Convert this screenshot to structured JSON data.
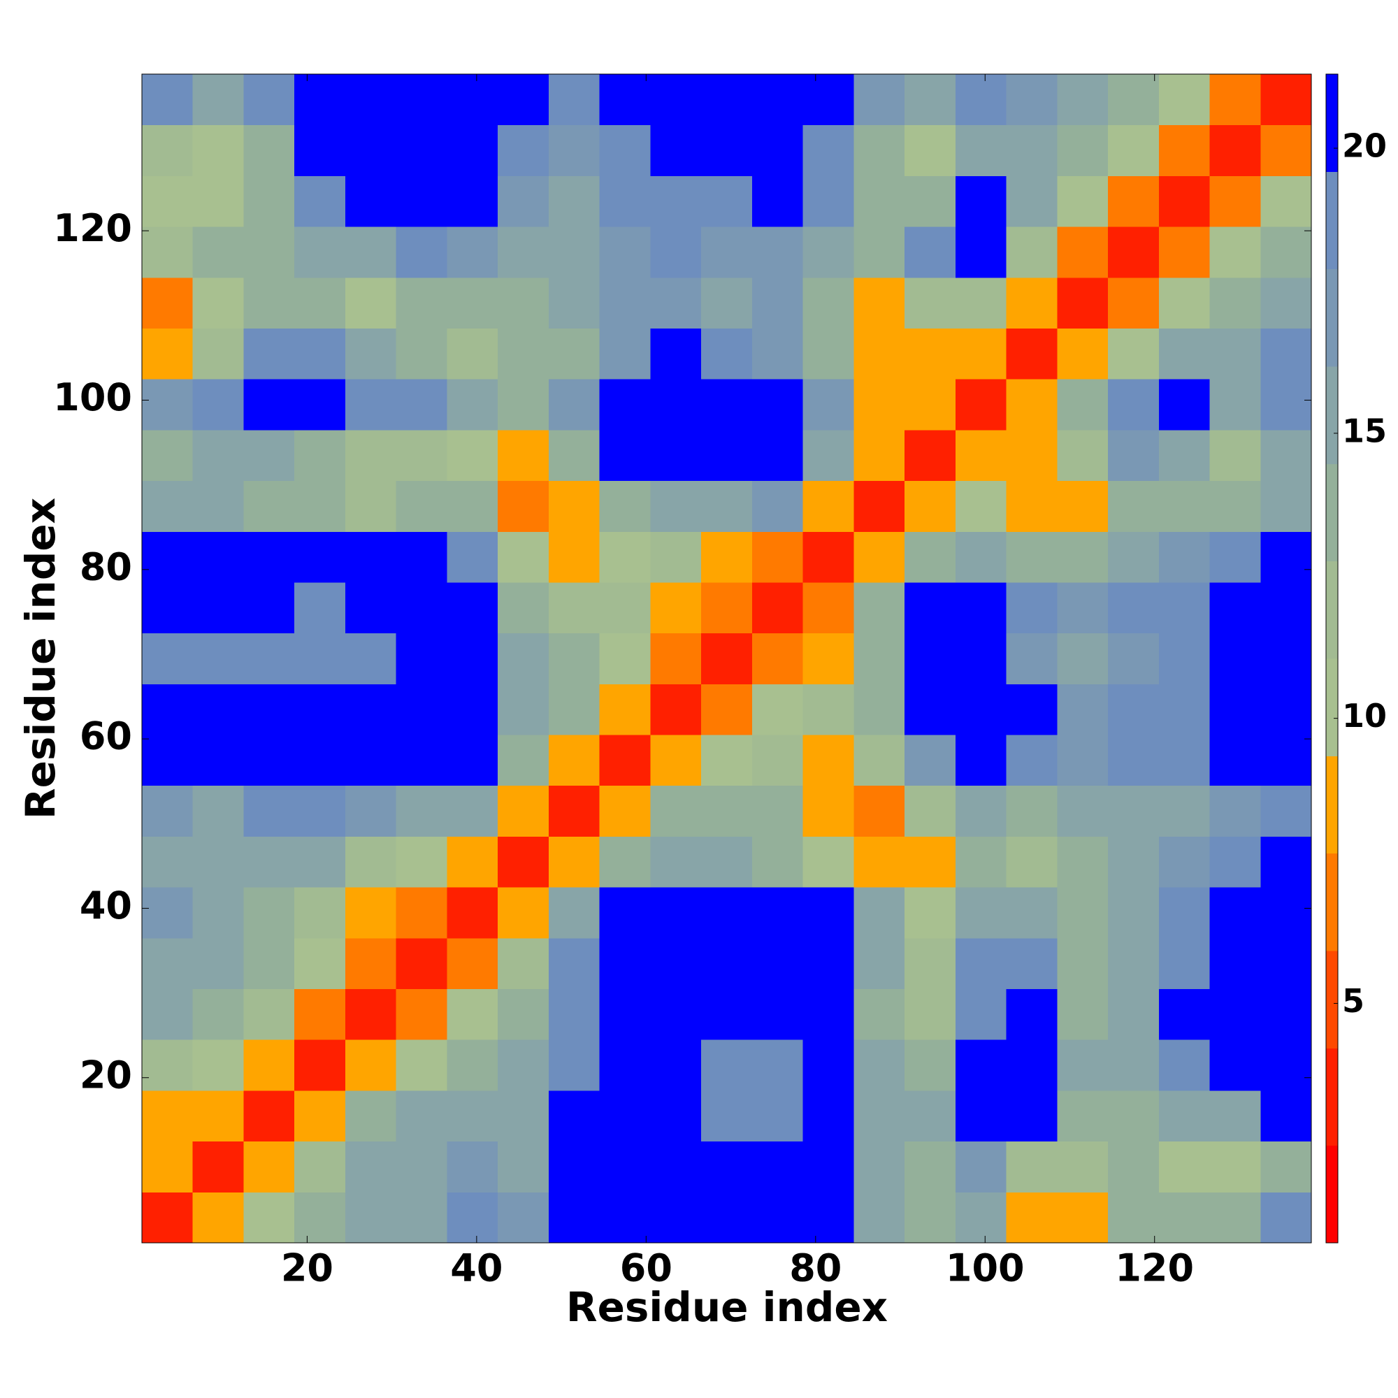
{
  "chart_data": {
    "type": "heatmap",
    "xlabel": "Residue index",
    "ylabel": "Residue index",
    "x_edges": [
      0.5,
      6.5,
      12.5,
      18.5,
      24.5,
      30.5,
      36.5,
      42.5,
      48.5,
      54.5,
      60.5,
      66.5,
      72.5,
      78.5,
      84.5,
      90.5,
      96.5,
      102.5,
      108.5,
      114.5,
      120.5,
      126.5,
      132.5,
      138.5
    ],
    "y_edges": [
      0.5,
      6.5,
      12.5,
      18.5,
      24.5,
      30.5,
      36.5,
      42.5,
      48.5,
      54.5,
      60.5,
      66.5,
      72.5,
      78.5,
      84.5,
      90.5,
      96.5,
      102.5,
      108.5,
      114.5,
      120.5,
      126.5,
      132.5,
      138.5
    ],
    "xlim": [
      0.5,
      138.5
    ],
    "ylim": [
      0.5,
      138.5
    ],
    "xticks": [
      20,
      40,
      60,
      80,
      100,
      120
    ],
    "yticks": [
      20,
      40,
      60,
      80,
      100,
      120
    ],
    "zlim": [
      0.8,
      21.3
    ],
    "zticks": [
      5,
      10,
      15,
      20
    ],
    "colormap": [
      "#ff0000",
      "#ff2000",
      "#ff4a00",
      "#ff7a00",
      "#ffa500",
      "#a8c090",
      "#a2bb92",
      "#94b09a",
      "#88a5a8",
      "#7a98b4",
      "#6e8ebe",
      "#0000ff"
    ],
    "z": [
      [
        4,
        8,
        10,
        14,
        15,
        16,
        18,
        17,
        21,
        21,
        21,
        20,
        21,
        21,
        15,
        13,
        16,
        8,
        8,
        13,
        13,
        14,
        18
      ],
      [
        8,
        4,
        8,
        12,
        15,
        15,
        17,
        16,
        21,
        21,
        21,
        21,
        21,
        21,
        16,
        14,
        17,
        12,
        12,
        13,
        11,
        11,
        14
      ],
      [
        9,
        8,
        4,
        9,
        13,
        15,
        15,
        16,
        21,
        21,
        21,
        19,
        19,
        21,
        16,
        16,
        21,
        20,
        14,
        13,
        15,
        16,
        21
      ],
      [
        12,
        11,
        9,
        4,
        8,
        11,
        13,
        15,
        19,
        21,
        21,
        18,
        18,
        21,
        15,
        14,
        21,
        21,
        15,
        15,
        18,
        21,
        21
      ],
      [
        15,
        14,
        12,
        7,
        4,
        7,
        11,
        13,
        18,
        21,
        21,
        21,
        21,
        21,
        14,
        12,
        19,
        21,
        13,
        15,
        20,
        21,
        21
      ],
      [
        16,
        15,
        14,
        10,
        7,
        4,
        7,
        12,
        18,
        21,
        21,
        21,
        21,
        21,
        15,
        12,
        18,
        18,
        14,
        16,
        18,
        20,
        21
      ],
      [
        17,
        16,
        14,
        12,
        9,
        7,
        4,
        8,
        16,
        21,
        21,
        21,
        21,
        20,
        15,
        10,
        15,
        15,
        13,
        16,
        18,
        20,
        21
      ],
      [
        16,
        16,
        15,
        15,
        12,
        11,
        8,
        4,
        8,
        13,
        16,
        16,
        14,
        11,
        8,
        8,
        14,
        12,
        13,
        15,
        17,
        19,
        21
      ],
      [
        17,
        16,
        18,
        18,
        17,
        16,
        16,
        8,
        4,
        8,
        13,
        14,
        13,
        8,
        7,
        12,
        16,
        14,
        15,
        16,
        16,
        17,
        19
      ],
      [
        21,
        21,
        21,
        21,
        21,
        21,
        20,
        13,
        9,
        4,
        8,
        11,
        12,
        9,
        12,
        17,
        21,
        18,
        17,
        18,
        19,
        20,
        21
      ],
      [
        21,
        21,
        21,
        21,
        21,
        21,
        21,
        16,
        13,
        8,
        4,
        7,
        10,
        12,
        13,
        20,
        21,
        20,
        17,
        18,
        19,
        21,
        21
      ],
      [
        18,
        19,
        18,
        18,
        19,
        21,
        21,
        15,
        13,
        11,
        7,
        4,
        7,
        9,
        13,
        20,
        21,
        17,
        16,
        17,
        18,
        20,
        21
      ],
      [
        21,
        21,
        21,
        19,
        21,
        21,
        21,
        13,
        12,
        12,
        9,
        7,
        4,
        7,
        14,
        21,
        21,
        18,
        17,
        18,
        19,
        21,
        21
      ],
      [
        21,
        21,
        21,
        21,
        21,
        21,
        19,
        11,
        8,
        11,
        12,
        9,
        7,
        4,
        9,
        14,
        16,
        13,
        13,
        15,
        17,
        18,
        21
      ],
      [
        16,
        15,
        14,
        13,
        12,
        14,
        14,
        7,
        9,
        13,
        15,
        16,
        17,
        9,
        4,
        8,
        11,
        9,
        8,
        13,
        14,
        13,
        15
      ],
      [
        14,
        15,
        15,
        14,
        12,
        12,
        10,
        8,
        13,
        20,
        21,
        21,
        21,
        15,
        8,
        4,
        8,
        8,
        12,
        17,
        15,
        12,
        16
      ],
      [
        17,
        19,
        21,
        21,
        18,
        18,
        15,
        14,
        17,
        21,
        21,
        21,
        21,
        17,
        9,
        8,
        4,
        8,
        13,
        19,
        21,
        16,
        18
      ],
      [
        8,
        12,
        18,
        18,
        15,
        14,
        12,
        13,
        14,
        17,
        21,
        18,
        17,
        14,
        8,
        9,
        8,
        4,
        8,
        11,
        16,
        16,
        18
      ],
      [
        7,
        11,
        13,
        13,
        11,
        13,
        13,
        13,
        15,
        17,
        17,
        16,
        17,
        14,
        9,
        12,
        12,
        8,
        4,
        7,
        10,
        13,
        16
      ],
      [
        12,
        13,
        13,
        15,
        16,
        18,
        17,
        15,
        15,
        17,
        18,
        17,
        17,
        16,
        13,
        18,
        21,
        12,
        7,
        4,
        7,
        11,
        14
      ],
      [
        11,
        11,
        14,
        19,
        21,
        20,
        20,
        17,
        16,
        18,
        19,
        19,
        20,
        18,
        14,
        14,
        21,
        16,
        10,
        7,
        4,
        7,
        11
      ],
      [
        12,
        10,
        13,
        21,
        21,
        21,
        21,
        18,
        17,
        19,
        21,
        21,
        21,
        19,
        13,
        11,
        16,
        15,
        13,
        11,
        7,
        4,
        7
      ],
      [
        18,
        15,
        18,
        21,
        21,
        21,
        21,
        20,
        19,
        21,
        21,
        21,
        21,
        21,
        17,
        15,
        18,
        17,
        15,
        14,
        10,
        7,
        4
      ]
    ]
  }
}
